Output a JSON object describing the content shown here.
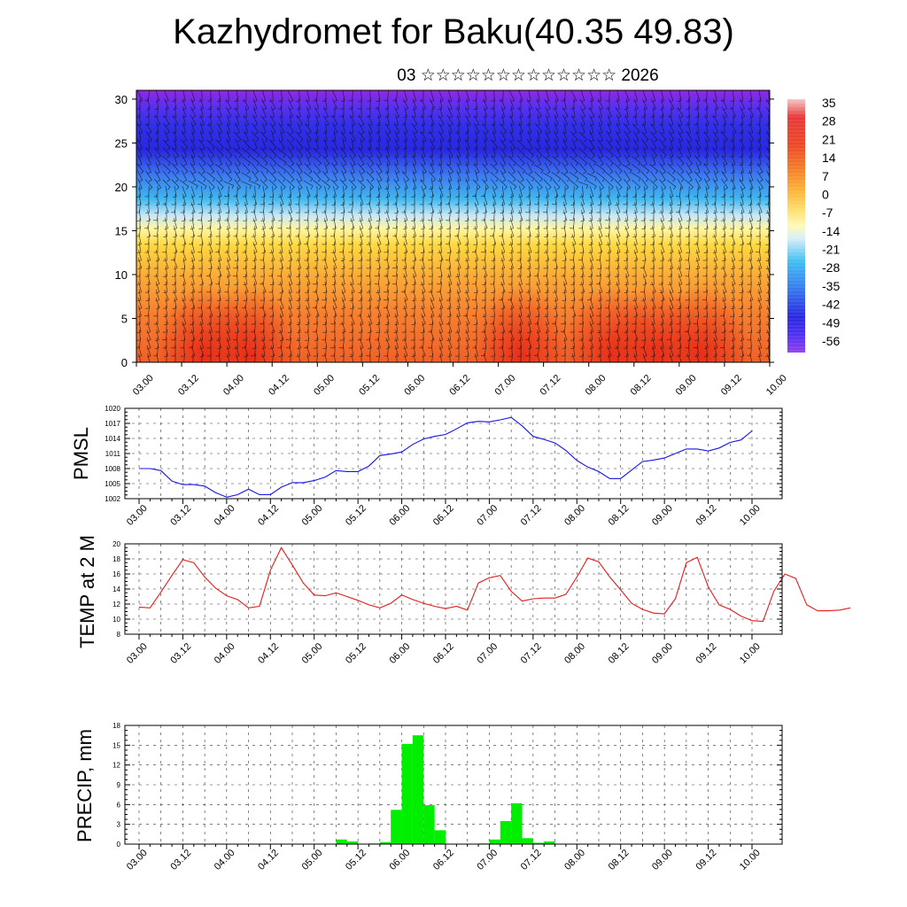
{
  "title": "Kazhydromet for Baku(40.35 49.83)",
  "subtitle": "03 ☆☆☆☆☆☆☆☆☆☆☆☆☆ 2026",
  "time_ticks": [
    "03.00",
    "03.12",
    "04.00",
    "04.12",
    "05.00",
    "05.12",
    "06.00",
    "06.12",
    "07.00",
    "07.12",
    "08.00",
    "08.12",
    "09.00",
    "09.12",
    "10.00"
  ],
  "chart_data": [
    {
      "type": "heatmap",
      "name_text": "",
      "description": "Vertical cross-section of temperature (shaded) with wind barbs",
      "xlabel": "",
      "ylabel": "",
      "y_ticks": [
        0,
        5,
        10,
        15,
        20,
        25,
        30
      ],
      "ylim": [
        0,
        31
      ],
      "colorbar_labels": [
        "35",
        "28",
        "21",
        "14",
        "7",
        "0",
        "-7",
        "-14",
        "-21",
        "-28",
        "-35",
        "-42",
        "-49",
        "-56"
      ],
      "colorbar_stops": [
        "#f4c4c4",
        "#e83030",
        "#f06020",
        "#fa9a30",
        "#ffd040",
        "#fff8a0",
        "#e0f0ff",
        "#40c0f0",
        "#4080f0",
        "#2828e0",
        "#7828e0",
        "#9040f0"
      ],
      "warm_spots_times": [
        0.75,
        1.25,
        4.25,
        5.25,
        5.75,
        6.25
      ],
      "grid": false
    },
    {
      "type": "line",
      "ylabel": "PMSL",
      "ylim": [
        1002,
        1020
      ],
      "y_ticks": [
        1002,
        1005,
        1008,
        1011,
        1014,
        1017,
        1020
      ],
      "color": "#1414e6",
      "x_step_hours": 3,
      "values": [
        1008,
        1008,
        1007.6,
        1005.5,
        1004.8,
        1004.8,
        1004.5,
        1003.2,
        1002.3,
        1002.8,
        1003.9,
        1002.8,
        1002.8,
        1004.3,
        1005.2,
        1005.2,
        1005.6,
        1006.3,
        1007.6,
        1007.4,
        1007.4,
        1008.5,
        1010.6,
        1010.9,
        1011.3,
        1012.8,
        1013.9,
        1014.4,
        1014.8,
        1015.9,
        1017.1,
        1017.4,
        1017.3,
        1017.7,
        1018.2,
        1016.5,
        1014.4,
        1013.8,
        1013.1,
        1011.6,
        1009.6,
        1008.3,
        1007.4,
        1006,
        1006,
        1007.7,
        1009.4,
        1009.7,
        1010.1,
        1011,
        1011.9,
        1011.9,
        1011.5,
        1012.1,
        1013.2,
        1013.7,
        1015.5
      ],
      "grid": true
    },
    {
      "type": "line",
      "ylabel": "TEMP at 2 M",
      "ylim": [
        8,
        20
      ],
      "y_ticks": [
        8,
        10,
        12,
        14,
        16,
        18,
        20
      ],
      "color": "#e41c1c",
      "x_step_hours": 3,
      "values": [
        11.6,
        11.5,
        13.6,
        15.8,
        17.9,
        17.5,
        15.6,
        14.1,
        13.1,
        12.6,
        11.5,
        11.7,
        16.5,
        19.5,
        17.2,
        14.8,
        13.2,
        13.1,
        13.5,
        13,
        12.5,
        11.9,
        11.5,
        12.1,
        13.2,
        12.6,
        12.1,
        11.7,
        11.4,
        11.7,
        11.2,
        14.8,
        15.5,
        15.8,
        13.7,
        12.4,
        12.7,
        12.8,
        12.8,
        13.3,
        15.6,
        18.1,
        17.6,
        15.6,
        13.9,
        12.1,
        11.3,
        10.8,
        10.7,
        12.7,
        17.5,
        18.2,
        14.3,
        11.9,
        11.3,
        10.4,
        9.8,
        9.7,
        13.7,
        16,
        15.4,
        11.9,
        11.1,
        11.1,
        11.2,
        11.5
      ],
      "grid": true
    },
    {
      "type": "bar",
      "ylabel": "PRECIP, mm",
      "ylim": [
        0,
        18
      ],
      "y_ticks": [
        0,
        3,
        6,
        9,
        12,
        15,
        18
      ],
      "color": "#00ee00",
      "x_step_hours": 3,
      "values": [
        0,
        0,
        0,
        0,
        0,
        0,
        0,
        0,
        0,
        0,
        0,
        0,
        0,
        0,
        0,
        0,
        0,
        0,
        0.7,
        0.4,
        0,
        0.1,
        0.3,
        5.2,
        15.2,
        16.5,
        5.9,
        2.1,
        0,
        0,
        0,
        0.1,
        0.7,
        3.5,
        6.2,
        0.9,
        0.2,
        0.4,
        0,
        0,
        0,
        0,
        0,
        0,
        0,
        0,
        0,
        0,
        0,
        0,
        0,
        0,
        0,
        0,
        0,
        0,
        0,
        0,
        0,
        0,
        0,
        0,
        0,
        0,
        0,
        0,
        0,
        0,
        0
      ],
      "grid": true
    }
  ]
}
